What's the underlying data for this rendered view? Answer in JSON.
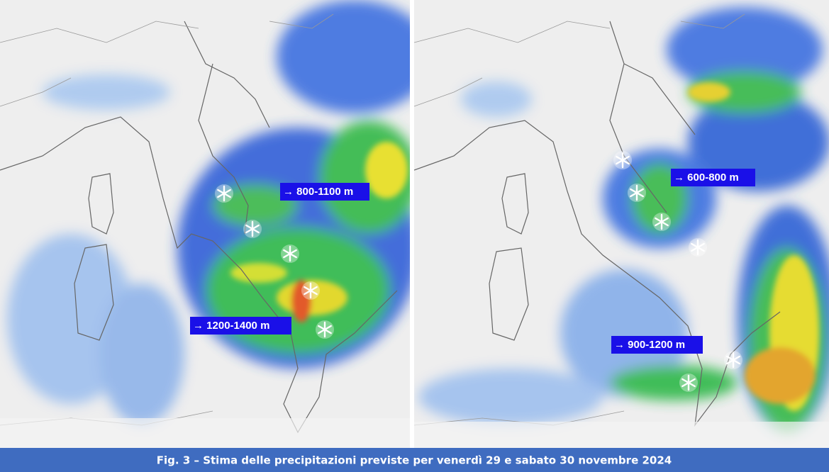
{
  "panels": [
    {
      "labels": [
        "→ 800-1100 m",
        "→ 1200-1400 m"
      ]
    },
    {
      "labels": [
        "→ 600-800 m",
        "→ 900-1200 m"
      ]
    }
  ],
  "caption": "Fig. 3 – Stima delle precipitazioni previste per venerdì 29 e sabato 30 novembre 2024"
}
